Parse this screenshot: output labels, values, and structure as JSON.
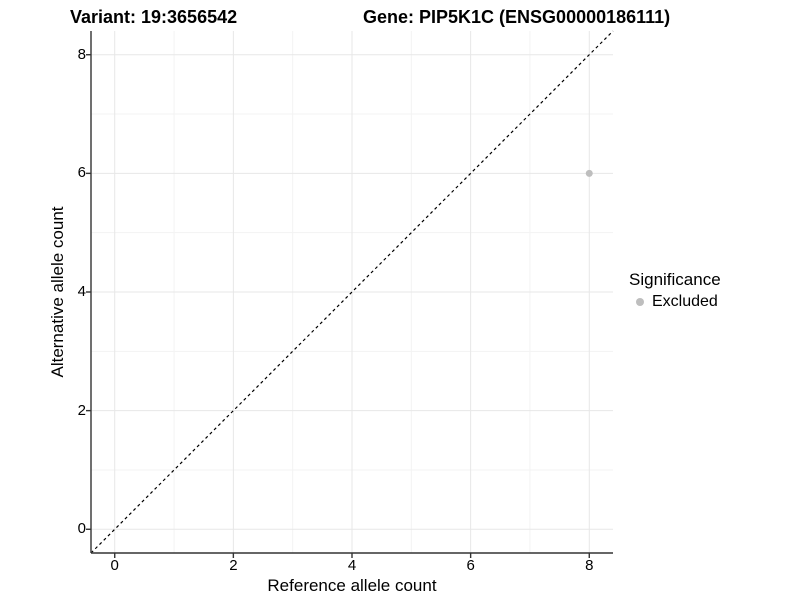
{
  "chart_data": {
    "type": "scatter",
    "title_left": "Variant: 19:3656542",
    "title_right": "Gene: PIP5K1C (ENSG00000186111)",
    "xlabel": "Reference allele count",
    "ylabel": "Alternative allele count",
    "xlim": [
      -0.4,
      8.4
    ],
    "ylim": [
      -0.4,
      8.4
    ],
    "x_major_ticks": [
      0,
      2,
      4,
      6,
      8
    ],
    "y_major_ticks": [
      0,
      2,
      4,
      6,
      8
    ],
    "x_minor_ticks": [
      1,
      3,
      5,
      7
    ],
    "y_minor_ticks": [
      1,
      3,
      5,
      7
    ],
    "grid": {
      "major": true,
      "minor": true
    },
    "reference_line": {
      "type": "identity",
      "equation": "y = x",
      "style": "dashed",
      "color": "#000000"
    },
    "series": [
      {
        "name": "Excluded",
        "color": "#bebebe",
        "points": [
          {
            "x": 8,
            "y": 6
          }
        ]
      }
    ],
    "legend": {
      "title": "Significance",
      "position": "right",
      "items": [
        {
          "label": "Excluded",
          "color": "#bebebe",
          "marker": "circle"
        }
      ]
    }
  },
  "colors": {
    "background": "#ffffff",
    "text": "#000000",
    "axis_line": "#333333",
    "grid_major": "#e7e7e7",
    "grid_minor": "#f3f3f3"
  }
}
